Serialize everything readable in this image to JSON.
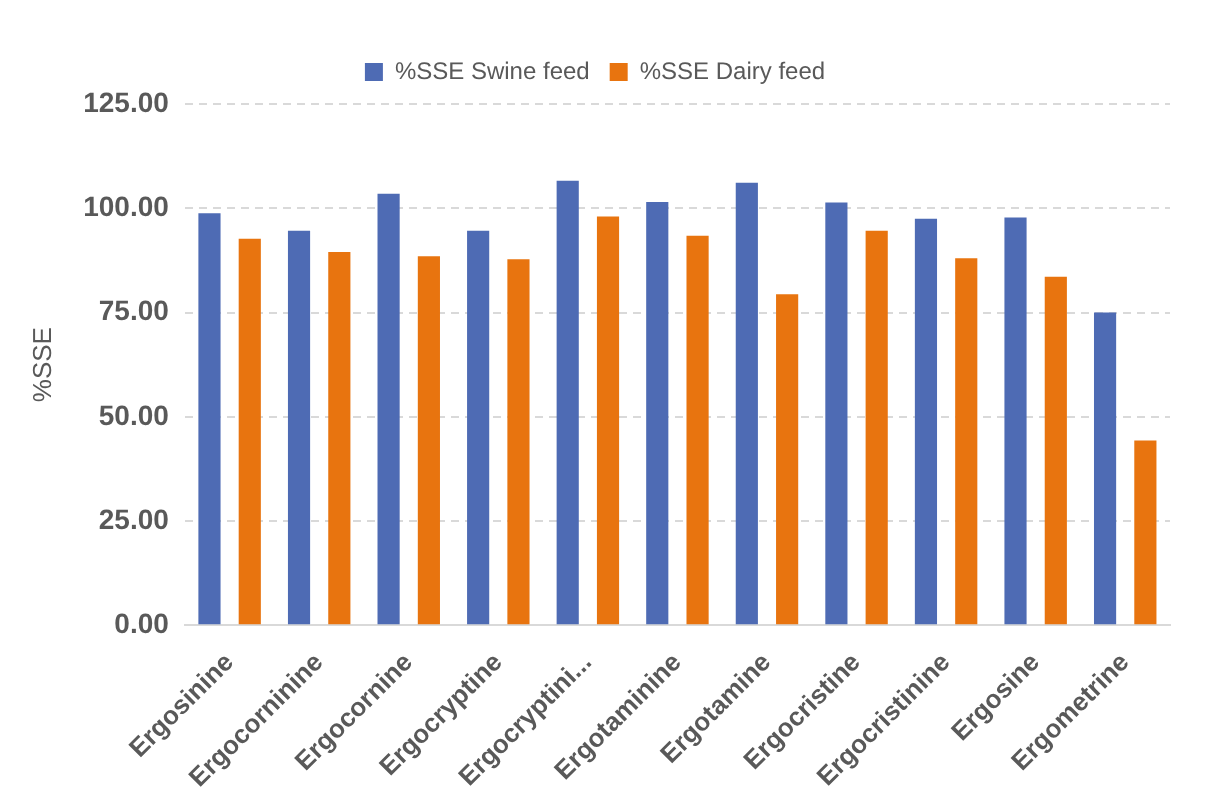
{
  "chart_data": {
    "type": "bar",
    "ylabel": "%SSE",
    "categories": [
      "Ergosinine",
      "Ergocorninine",
      "Ergocornine",
      "Ergocryptine",
      "Ergocryptini...",
      "Ergotaminine",
      "Ergotamine",
      "Ergocristine",
      "Ergocristinine",
      "Ergosine",
      "Ergometrine"
    ],
    "series": [
      {
        "name": "%SSE Swine feed",
        "color": "#4e6bb4",
        "values": [
          98.8,
          94.6,
          103.5,
          94.6,
          106.6,
          101.5,
          106.1,
          101.4,
          97.5,
          97.8,
          75.0
        ]
      },
      {
        "name": "%SSE Dairy feed",
        "color": "#e8740f",
        "values": [
          92.7,
          89.5,
          88.5,
          87.8,
          98.0,
          93.4,
          79.4,
          94.6,
          88.0,
          83.6,
          44.3
        ]
      }
    ],
    "ylim": [
      0,
      125
    ],
    "yticks": [
      {
        "value": 0,
        "label": "0.00"
      },
      {
        "value": 25,
        "label": "25.00"
      },
      {
        "value": 50,
        "label": "50.00"
      },
      {
        "value": 75,
        "label": "75.00"
      },
      {
        "value": 100,
        "label": "100.00"
      },
      {
        "value": 125,
        "label": "125.00"
      }
    ],
    "grid": "y",
    "legend": "top"
  }
}
